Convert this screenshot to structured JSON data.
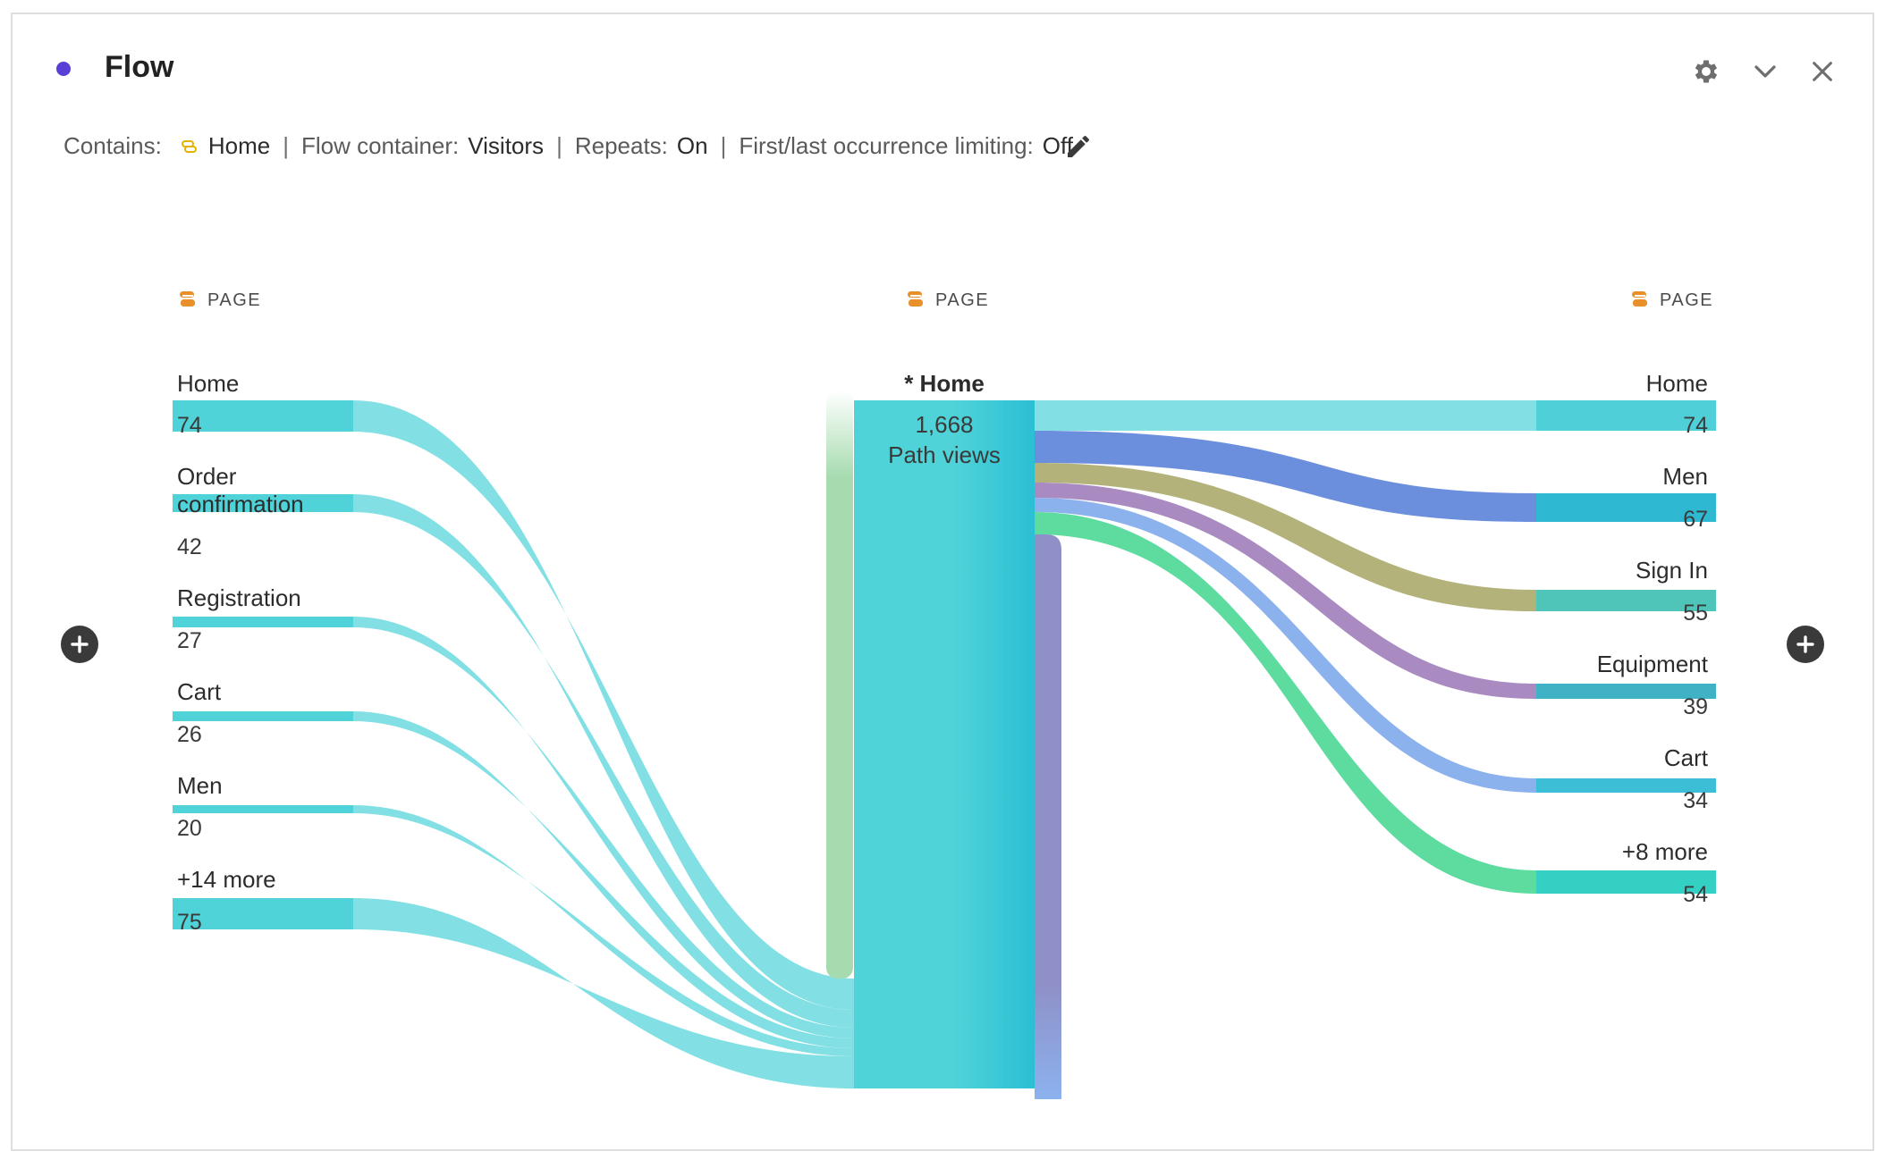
{
  "panel": {
    "title": "Flow",
    "dot_color": "#5a3fd6",
    "icons": [
      "gear-icon",
      "chevron-down-icon",
      "close-icon"
    ]
  },
  "filters": {
    "contains_label": "Contains:",
    "contains_value": "Home",
    "container_label": "Flow container:",
    "container_value": "Visitors",
    "repeats_label": "Repeats:",
    "repeats_value": "On",
    "occurrence_label": "First/last occurrence limiting:",
    "occurrence_value": "Off",
    "separator": "|"
  },
  "columns": {
    "left_header": "PAGE",
    "center_header": "PAGE",
    "right_header": "PAGE"
  },
  "left_nodes": [
    {
      "label": "Home",
      "count": "74"
    },
    {
      "label": "Order confirmation",
      "count": "42"
    },
    {
      "label": "Registration",
      "count": "27"
    },
    {
      "label": "Cart",
      "count": "26"
    },
    {
      "label": "Men",
      "count": "20"
    },
    {
      "label": "+14 more",
      "count": "75"
    }
  ],
  "center_node": {
    "label": "* Home",
    "count": "1,668",
    "unit": "Path views"
  },
  "right_nodes": [
    {
      "label": "Home",
      "count": "74",
      "color": "#4fd0d8"
    },
    {
      "label": "Men",
      "count": "67",
      "color": "#6b8fdd"
    },
    {
      "label": "Sign In",
      "count": "55",
      "color": "#b3b27a"
    },
    {
      "label": "Equipment",
      "count": "39",
      "color": "#a98bc2"
    },
    {
      "label": "Cart",
      "count": "34",
      "color": "#8cb2ee"
    },
    {
      "label": "+8 more",
      "count": "54",
      "color": "#5edc9f"
    }
  ],
  "colors": {
    "node_teal": "#4fd3d8",
    "flow_teal": "#82e0e4",
    "center_gradient_end": "#2bbfd4",
    "entry_green": "#a5dbae",
    "exit_purple": "#8f90c8"
  }
}
